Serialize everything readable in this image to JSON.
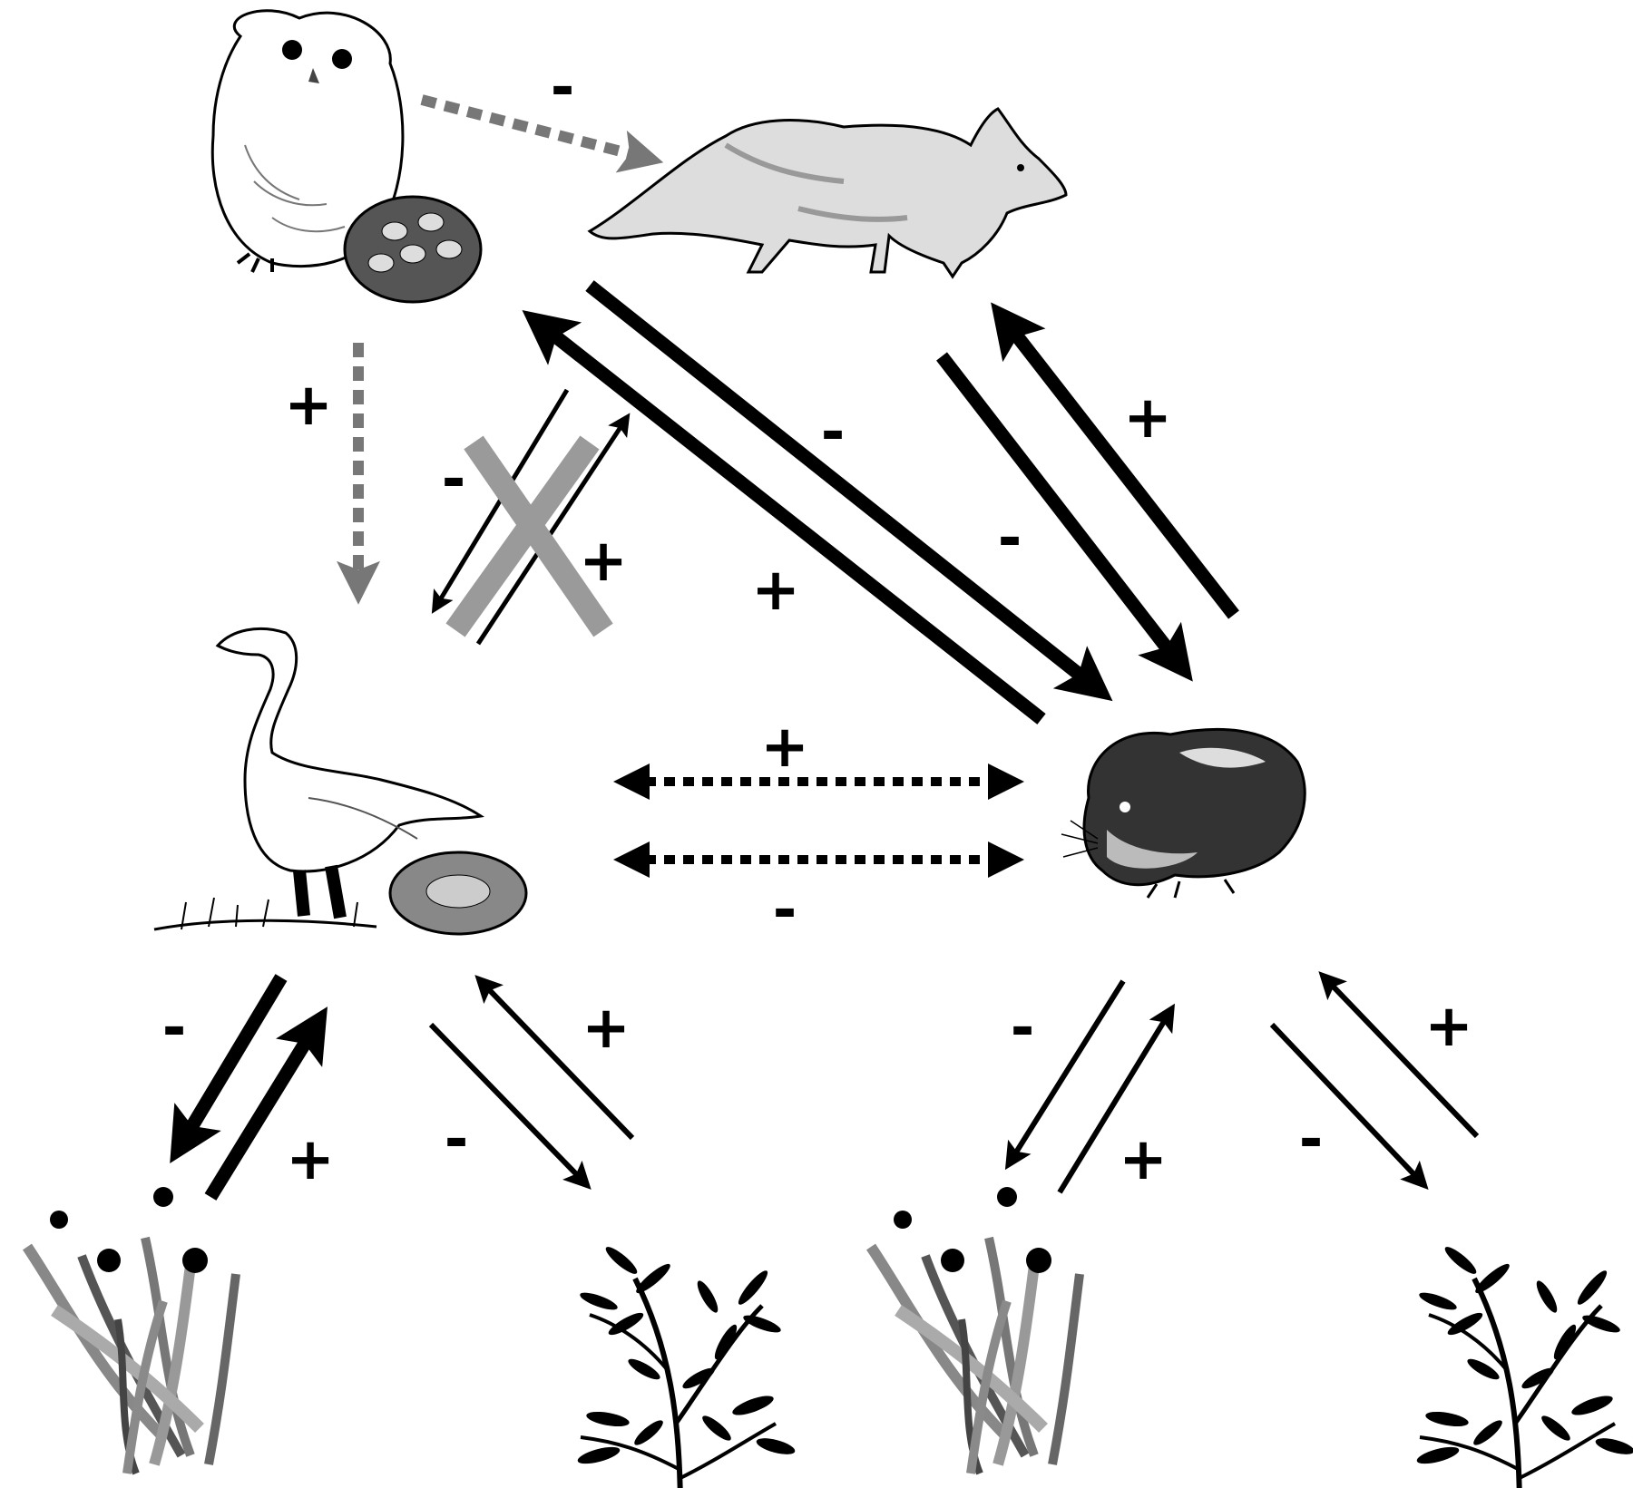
{
  "nodes": [
    {
      "id": "owl",
      "icon": "snowy-owl-with-nest-icon"
    },
    {
      "id": "fox",
      "icon": "arctic-fox-icon"
    },
    {
      "id": "goose",
      "icon": "snow-goose-with-nest-icon"
    },
    {
      "id": "lemming",
      "icon": "lemming-icon"
    },
    {
      "id": "graminoid_left",
      "icon": "graminoid-plant-icon"
    },
    {
      "id": "shrub_left",
      "icon": "shrub-plant-icon"
    },
    {
      "id": "graminoid_right",
      "icon": "graminoid-plant-icon"
    },
    {
      "id": "shrub_right",
      "icon": "shrub-plant-icon"
    }
  ],
  "links": [
    {
      "id": "owl-fox",
      "sign": "-"
    },
    {
      "id": "owl-goose",
      "sign": "+"
    },
    {
      "id": "fox-goose",
      "sign": "-"
    },
    {
      "id": "goose-fox",
      "sign": "+"
    },
    {
      "id": "fox-lemming-diag",
      "sign": "-"
    },
    {
      "id": "lemming-fox-diag",
      "sign": "+"
    },
    {
      "id": "fox-lemming",
      "sign": "-"
    },
    {
      "id": "lemming-fox",
      "sign": "+"
    },
    {
      "id": "goose-lemming-positive",
      "sign": "+"
    },
    {
      "id": "goose-lemming-negative",
      "sign": "-"
    },
    {
      "id": "goose-graminoid",
      "sign": "-"
    },
    {
      "id": "graminoid-goose",
      "sign": "+"
    },
    {
      "id": "goose-shrub",
      "sign": "-"
    },
    {
      "id": "shrub-goose",
      "sign": "+"
    },
    {
      "id": "lemming-graminoid",
      "sign": "-"
    },
    {
      "id": "graminoid-lemming",
      "sign": "+"
    },
    {
      "id": "lemming-shrub",
      "sign": "-"
    },
    {
      "id": "shrub-lemming",
      "sign": "+"
    }
  ],
  "colors": {
    "solid": "#000000",
    "dashed_owl": "#777777",
    "cross": "#9a9a9a"
  }
}
